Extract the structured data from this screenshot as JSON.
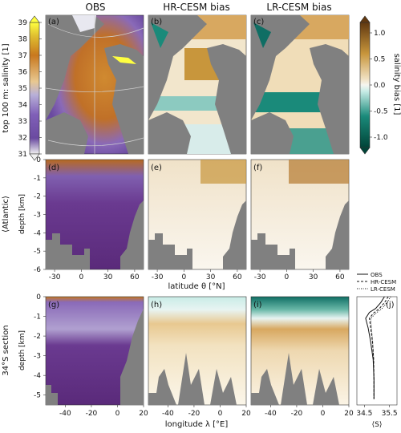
{
  "chart_data": [
    {
      "type": "heatmap",
      "panel": "a",
      "title": "OBS",
      "colorbar_label": "top 100 m: salinity [1]",
      "colorbar_ticks": [
        31,
        32,
        33,
        34,
        35,
        36,
        37,
        38,
        39
      ],
      "colorbar_range": [
        31,
        39
      ]
    },
    {
      "type": "heatmap",
      "panel": "b",
      "title": "HR-CESM bias"
    },
    {
      "type": "heatmap",
      "panel": "c",
      "title": "LR-CESM bias",
      "colorbar_label": "salinity bias [1]",
      "colorbar_ticks": [
        -1.0,
        -0.5,
        0.0,
        0.5,
        1.0
      ],
      "colorbar_range": [
        -1.2,
        1.2
      ]
    },
    {
      "type": "heatmap",
      "panel": "d",
      "row_label": "⟨Atlantic⟩",
      "ylabel": "depth [km]",
      "y_ticks": [
        0,
        -1,
        -2,
        -3,
        -4,
        -5,
        -6
      ],
      "x_ticks": [
        -30,
        0,
        30,
        60
      ]
    },
    {
      "type": "heatmap",
      "panel": "e",
      "xlabel": "latitude θ [°N]",
      "x_ticks": [
        -30,
        0,
        30,
        60
      ]
    },
    {
      "type": "heatmap",
      "panel": "f",
      "x_ticks": [
        -30,
        0,
        30,
        60
      ]
    },
    {
      "type": "heatmap",
      "panel": "g",
      "row_label": "34°S section",
      "ylabel": "depth [km]",
      "y_ticks": [
        0,
        -1,
        -2,
        -3,
        -4,
        -5
      ],
      "x_ticks": [
        -40,
        -20,
        0,
        20
      ]
    },
    {
      "type": "heatmap",
      "panel": "h",
      "xlabel": "longitude λ [°E]",
      "x_ticks": [
        -40,
        -20,
        0,
        20
      ]
    },
    {
      "type": "heatmap",
      "panel": "i",
      "x_ticks": [
        -40,
        -20,
        0,
        20
      ]
    },
    {
      "type": "line",
      "panel": "j",
      "xlabel": "⟨S⟩",
      "x_ticks": [
        34.5,
        35.5
      ],
      "xlim": [
        34.2,
        35.8
      ],
      "ylim": [
        -5.5,
        0
      ],
      "legend": [
        "OBS",
        "HR-CESM",
        "LR-CESM"
      ],
      "series": [
        {
          "name": "OBS",
          "x": [
            35.3,
            35.15,
            34.95,
            34.7,
            34.55,
            34.65,
            34.75,
            34.85,
            34.88,
            34.88
          ],
          "y": [
            0,
            -0.3,
            -0.6,
            -0.8,
            -1.1,
            -1.6,
            -2.3,
            -3.2,
            -4.2,
            -5.2
          ]
        },
        {
          "name": "HR-CESM",
          "x": [
            35.45,
            35.3,
            35.1,
            34.85,
            34.7,
            34.75,
            34.82,
            34.87,
            34.88,
            34.88
          ],
          "y": [
            0,
            -0.3,
            -0.6,
            -0.85,
            -1.1,
            -1.6,
            -2.3,
            -3.2,
            -4.2,
            -5.2
          ]
        },
        {
          "name": "LR-CESM",
          "x": [
            35.55,
            35.4,
            35.2,
            34.95,
            34.75,
            34.78,
            34.83,
            34.87,
            34.88,
            34.88
          ],
          "y": [
            0,
            -0.3,
            -0.6,
            -0.85,
            -1.1,
            -1.6,
            -2.3,
            -3.2,
            -4.2,
            -5.2
          ]
        }
      ]
    }
  ],
  "panel_letters": [
    "(a)",
    "(b)",
    "(c)",
    "(d)",
    "(e)",
    "(f)",
    "(g)",
    "(h)",
    "(i)",
    "(j)"
  ],
  "colors": {
    "land": "#808080",
    "obs_high": "#c8781e",
    "obs_low": "#5a2d7a",
    "bias_pos": "#c8963c",
    "bias_neg": "#0f6e64",
    "background": "#ffffff"
  }
}
